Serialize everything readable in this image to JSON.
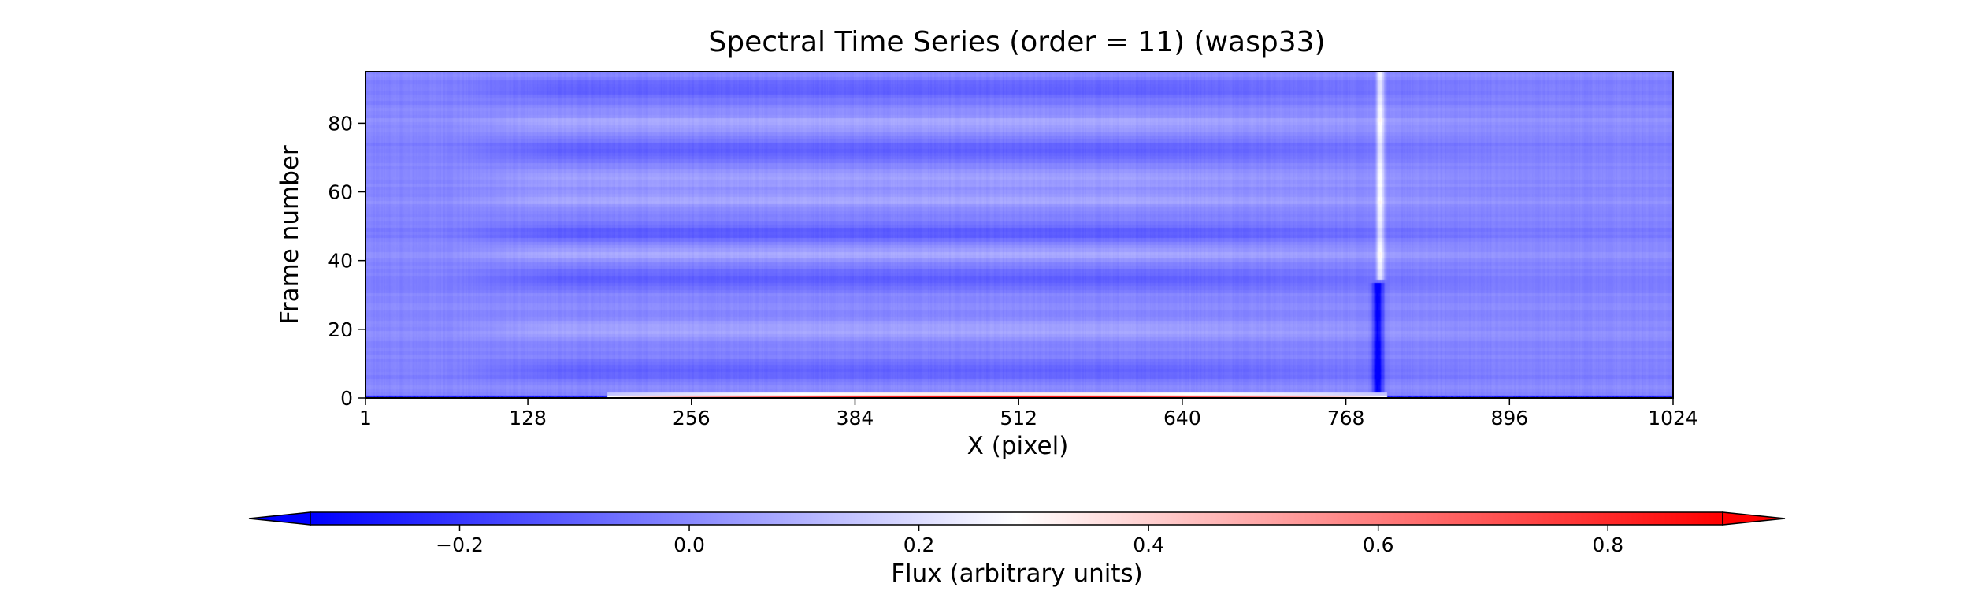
{
  "chart_data": {
    "type": "heatmap",
    "title": "Spectral Time Series (order = 11) (wasp33)",
    "xlabel": "X (pixel)",
    "ylabel": "Frame number",
    "x_range": [
      1,
      1024
    ],
    "y_range": [
      0,
      95
    ],
    "x_ticks": [
      1,
      128,
      256,
      384,
      512,
      640,
      768,
      896,
      1024
    ],
    "y_ticks": [
      0,
      20,
      40,
      60,
      80
    ],
    "colormap": "bwr",
    "colorbar": {
      "label": "Flux (arbitrary units)",
      "orientation": "horizontal",
      "placement": "bottom",
      "range": [
        -0.33,
        0.9
      ],
      "center": 0.3,
      "ticks": [
        -0.2,
        0.0,
        0.2,
        0.4,
        0.6,
        0.8
      ],
      "tick_labels": [
        "−0.2",
        "0.0",
        "0.2",
        "0.4",
        "0.6",
        "0.8"
      ],
      "extend": "both"
    },
    "background_level": 0.0,
    "features": [
      {
        "label": "bright vertical band (upper frames)",
        "x": 795,
        "frame_range": [
          35,
          95
        ],
        "value": 0.3
      },
      {
        "label": "dark vertical absorption (lower frames)",
        "x": 793,
        "frame_range": [
          0,
          33
        ],
        "value": -0.3
      },
      {
        "label": "frame 0 strip, high values",
        "x_range": [
          190,
          800
        ],
        "frame": 0,
        "value": 0.85
      },
      {
        "label": "frame 0 strip, low values",
        "x_range": [
          1,
          190
        ],
        "frame": 0,
        "value": -0.3
      },
      {
        "label": "darker horizontal bands",
        "x_range": [
          150,
          600
        ],
        "frames": [
          8,
          35,
          48,
          72,
          90
        ],
        "value": -0.1
      },
      {
        "label": "lighter horizontal bands",
        "x_range": [
          150,
          600
        ],
        "frames": [
          20,
          42,
          58,
          64,
          80
        ],
        "value": 0.1
      }
    ],
    "grid": false,
    "colors": {
      "min": "#0000ff",
      "center": "#ffffff",
      "max": "#ff0000"
    }
  }
}
